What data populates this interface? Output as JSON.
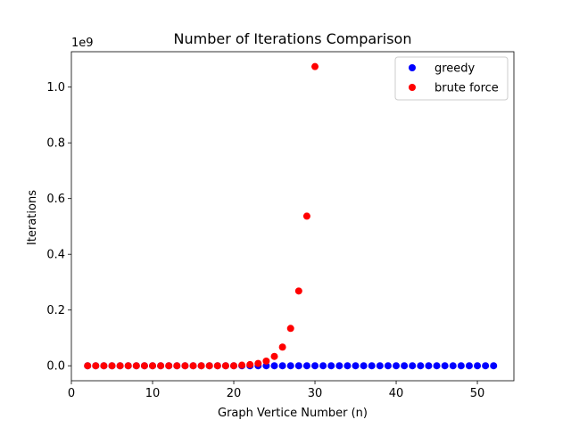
{
  "chart_data": {
    "type": "scatter",
    "title": "Number of Iterations Comparison",
    "xlabel": "Graph Vertice Number (n)",
    "ylabel": "Iterations",
    "offset_label": "1e9",
    "xlim": [
      0,
      54.5
    ],
    "ylim": [
      -0.0537,
      1.127
    ],
    "xticks": [
      0,
      10,
      20,
      30,
      40,
      50
    ],
    "xtick_labels": [
      "0",
      "10",
      "20",
      "30",
      "40",
      "50"
    ],
    "yticks": [
      0.0,
      0.2,
      0.4,
      0.6,
      0.8,
      1.0
    ],
    "ytick_labels": [
      "0.0",
      "0.2",
      "0.4",
      "0.6",
      "0.8",
      "1.0"
    ],
    "grid": false,
    "legend_position": "top-right",
    "series": [
      {
        "name": "greedy",
        "color": "#0000ff",
        "x": [
          2,
          3,
          4,
          5,
          6,
          7,
          8,
          9,
          10,
          11,
          12,
          13,
          14,
          15,
          16,
          17,
          18,
          19,
          20,
          21,
          22,
          23,
          24,
          25,
          26,
          27,
          28,
          29,
          30,
          31,
          32,
          33,
          34,
          35,
          36,
          37,
          38,
          39,
          40,
          41,
          42,
          43,
          44,
          45,
          46,
          47,
          48,
          49,
          50,
          51,
          52
        ],
        "y": [
          0,
          0,
          0,
          0,
          0,
          0,
          0,
          0,
          0,
          0,
          0,
          0,
          0,
          0,
          0,
          0,
          0,
          0,
          0,
          0,
          0,
          0,
          0,
          0,
          0,
          0,
          0,
          0,
          0,
          0,
          0,
          0,
          0,
          0,
          0,
          0,
          0,
          0,
          0,
          0,
          0,
          0,
          0,
          0,
          0,
          0,
          0,
          0,
          0,
          0,
          0
        ]
      },
      {
        "name": "brute force",
        "color": "#ff0000",
        "x": [
          2,
          3,
          4,
          5,
          6,
          7,
          8,
          9,
          10,
          11,
          12,
          13,
          14,
          15,
          16,
          17,
          18,
          19,
          20,
          21,
          22,
          23,
          24,
          25,
          26,
          27,
          28,
          29,
          30
        ],
        "y": [
          0,
          0,
          0,
          0,
          0,
          0,
          0,
          0,
          0,
          0,
          0,
          0,
          0,
          0,
          0,
          0,
          0,
          0,
          0,
          0.0021,
          0.0042,
          0.0084,
          0.0168,
          0.0336,
          0.0671,
          0.1342,
          0.2684,
          0.5369,
          1.0737
        ]
      }
    ]
  }
}
